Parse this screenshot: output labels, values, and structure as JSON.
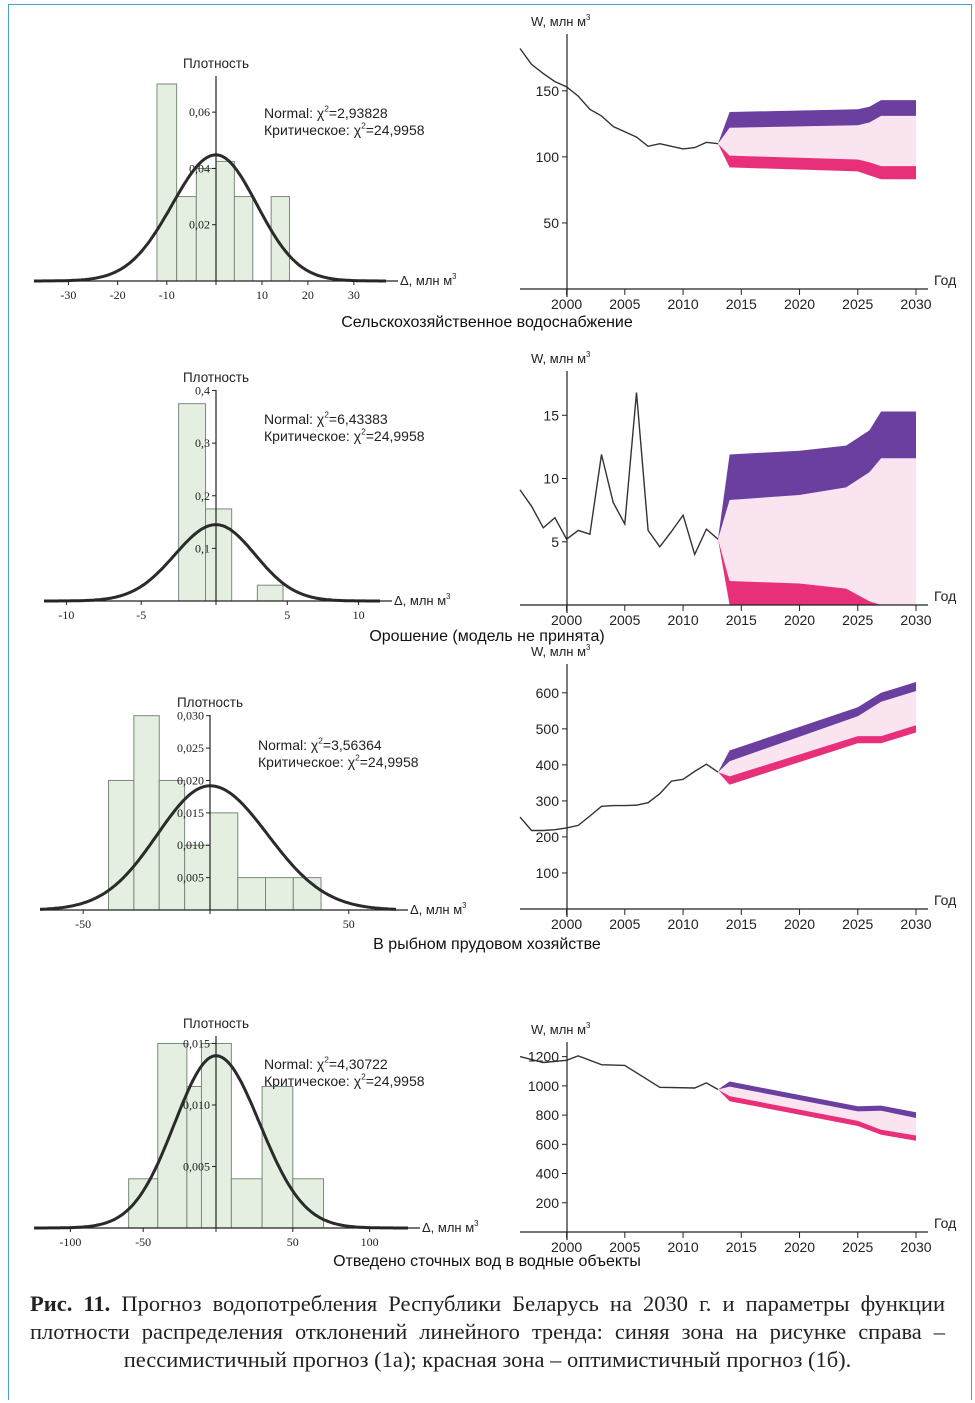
{
  "sections": [
    {
      "title": "Сельскохозяйственное водоснабжение",
      "hist": {
        "ylabel": "Плотность",
        "xlabel": "Δ, млн м",
        "unit_sup": "3",
        "xlim": [
          -37,
          37
        ],
        "ylim": [
          0,
          0.07
        ],
        "xticks": [
          -30,
          -20,
          -10,
          0,
          10,
          20,
          30
        ],
        "xtick_labels": [
          "-30",
          "-20",
          "-10",
          "",
          "10",
          "20",
          "30"
        ],
        "yticks": [
          0.02,
          0.04,
          0.06
        ],
        "ytick_labels": [
          "0,02",
          "0,04",
          "0,06"
        ],
        "bar_width": 4,
        "bar_starts": [
          -12,
          -8,
          -4,
          0,
          4,
          8,
          12
        ],
        "bar_heights": [
          0.07,
          0.03,
          0.04,
          0.0425,
          0.03,
          0.0,
          0.03
        ],
        "normal": {
          "mean": 0,
          "sd": 8.9
        },
        "stat_label": "Normal: χ",
        "stat_value": "=2,93828",
        "crit_label": "Критическое: χ",
        "crit_value": "=24,9958"
      },
      "forecast": {
        "ylabel": "W, млн м",
        "unit_sup": "3",
        "xlabel": "Год",
        "xlim": [
          1996,
          2030
        ],
        "ylim": [
          0,
          193
        ],
        "yticks": [
          50,
          100,
          150
        ],
        "ytick_labels": [
          "50",
          "100",
          "150"
        ],
        "xticks": [
          2000,
          2005,
          2010,
          2015,
          2020,
          2025,
          2030
        ],
        "history": {
          "x": [
            1996,
            1997,
            1998,
            1999,
            2000,
            2001,
            2002,
            2003,
            2004,
            2005,
            2006,
            2007,
            2008,
            2009,
            2010,
            2011,
            2012,
            2013
          ],
          "y": [
            182,
            170,
            163,
            157,
            153,
            146,
            136,
            131,
            123,
            119,
            115,
            108,
            110,
            108,
            106,
            107,
            111,
            110
          ]
        },
        "zones": {
          "x": [
            2013,
            2014,
            2025,
            2026,
            2027,
            2030
          ],
          "pess_upper": [
            110,
            134,
            136,
            138,
            143,
            143
          ],
          "pess_lower": [
            110,
            122,
            124,
            126,
            131,
            131
          ],
          "opt_upper": [
            110,
            101,
            98,
            96,
            93,
            93
          ],
          "opt_lower": [
            110,
            92,
            89,
            86,
            83,
            83
          ]
        }
      }
    },
    {
      "title": "Орошение (модель не принята)",
      "hist": {
        "ylabel": "Плотность",
        "xlabel": "Δ, млн м",
        "unit_sup": "3",
        "xlim": [
          -11.5,
          11.5
        ],
        "ylim": [
          0,
          0.42
        ],
        "xticks": [
          -10,
          -5,
          0,
          5,
          10
        ],
        "xtick_labels": [
          "-10",
          "-5",
          "",
          "5",
          "10"
        ],
        "yticks": [
          0.1,
          0.2,
          0.3,
          0.4
        ],
        "ytick_labels": [
          "0,1",
          "0,2",
          "0,3",
          "0,4"
        ],
        "bar_width": 1.8,
        "bar_starts": [
          -2.5,
          -0.7,
          1.1,
          2.9
        ],
        "bar_heights": [
          0.375,
          0.175,
          0.0,
          0.03
        ],
        "normal": {
          "mean": 0,
          "sd": 2.75
        },
        "stat_label": "Normal: χ",
        "stat_value": "=6,43383",
        "crit_label": "Критическое: χ",
        "crit_value": "=24,9958"
      },
      "forecast": {
        "ylabel": "W, млн м",
        "unit_sup": "3",
        "xlabel": "Год",
        "xlim": [
          1996,
          2030
        ],
        "ylim": [
          0,
          18.5
        ],
        "yticks": [
          5,
          10,
          15
        ],
        "ytick_labels": [
          "5",
          "10",
          "15"
        ],
        "xticks": [
          2000,
          2005,
          2010,
          2015,
          2020,
          2025,
          2030
        ],
        "history": {
          "x": [
            1996,
            1997,
            1998,
            1999,
            2000,
            2001,
            2002,
            2003,
            2004,
            2005,
            2006,
            2007,
            2008,
            2009,
            2010,
            2011,
            2012,
            2013
          ],
          "y": [
            9.1,
            7.8,
            6.1,
            6.9,
            5.2,
            5.9,
            5.6,
            11.9,
            8.1,
            6.4,
            16.8,
            5.9,
            4.6,
            5.8,
            7.1,
            4.0,
            6.0,
            5.2
          ]
        },
        "zones": {
          "x": [
            2013,
            2014,
            2020,
            2024,
            2026,
            2027,
            2030
          ],
          "pess_upper": [
            5.2,
            11.9,
            12.2,
            12.6,
            13.8,
            15.3,
            15.3
          ],
          "pess_lower": [
            5.2,
            8.3,
            8.7,
            9.3,
            10.5,
            11.6,
            11.6
          ],
          "opt_upper": [
            5.2,
            1.9,
            1.7,
            1.3,
            0.3,
            0,
            0
          ],
          "opt_lower": [
            5.2,
            0,
            0,
            0,
            0,
            0,
            0
          ]
        }
      }
    },
    {
      "title": "В рыбном прудовом хозяйстве",
      "hist": {
        "ylabel": "Плотность",
        "xlabel": "Δ, млн м",
        "unit_sup": "3",
        "xlim": [
          -67,
          67
        ],
        "ylim": [
          0,
          0.0315
        ],
        "xticks": [
          -50,
          0,
          50
        ],
        "xtick_labels": [
          "-50",
          "",
          "50"
        ],
        "yticks": [
          0.005,
          0.01,
          0.015,
          0.02,
          0.025,
          0.03
        ],
        "ytick_labels": [
          "0,005",
          "0,010",
          "0,015",
          "0,020",
          "0,025",
          "0,030"
        ],
        "bar_width": 10,
        "bar_starts": [
          -40,
          -30,
          -20,
          -10,
          0,
          10,
          20,
          30
        ],
        "bar_heights": [
          0.02,
          0.03,
          0.02,
          0.01,
          0.015,
          0.005,
          0.005,
          0.005
        ],
        "normal": {
          "mean": 0,
          "sd": 20.8
        },
        "stat_label": "Normal: χ",
        "stat_value": "=3,56364",
        "crit_label": "Критическое: χ",
        "crit_value": "=24,9958"
      },
      "forecast": {
        "ylabel": "W, млн м",
        "unit_sup": "3",
        "xlabel": "Год",
        "xlim": [
          1996,
          2030
        ],
        "ylim": [
          0,
          680
        ],
        "yticks": [
          100,
          200,
          300,
          400,
          500,
          600
        ],
        "ytick_labels": [
          "100",
          "200",
          "300",
          "400",
          "500",
          "600"
        ],
        "xticks": [
          2000,
          2005,
          2010,
          2015,
          2020,
          2025,
          2030
        ],
        "history": {
          "x": [
            1996,
            1997,
            1998,
            1999,
            2000,
            2001,
            2002,
            2003,
            2004,
            2005,
            2006,
            2007,
            2008,
            2009,
            2010,
            2011,
            2012,
            2013
          ],
          "y": [
            255,
            218,
            218,
            220,
            225,
            232,
            258,
            285,
            287,
            287,
            288,
            295,
            320,
            355,
            360,
            382,
            402,
            380
          ]
        },
        "zones": {
          "x": [
            2013,
            2014,
            2025,
            2027,
            2030
          ],
          "pess_upper": [
            380,
            440,
            560,
            600,
            630
          ],
          "pess_lower": [
            380,
            410,
            535,
            575,
            605
          ],
          "opt_upper": [
            380,
            368,
            480,
            480,
            510
          ],
          "opt_lower": [
            380,
            345,
            460,
            460,
            490
          ]
        }
      }
    },
    {
      "title": "Отведено сточных вод в водные объекты",
      "hist": {
        "ylabel": "Плотность",
        "xlabel": "Δ, млн м",
        "unit_sup": "3",
        "xlim": [
          -125,
          125
        ],
        "ylim": [
          0,
          0.0165
        ],
        "xticks": [
          -100,
          -50,
          0,
          50,
          100
        ],
        "xtick_labels": [
          "-100",
          "-50",
          "",
          "50",
          "100"
        ],
        "yticks": [
          0.005,
          0.01,
          0.015
        ],
        "ytick_labels": [
          "0,005",
          "0,010",
          "0,015"
        ],
        "bar_width": 20,
        "bar_starts": [
          -60,
          -40,
          -20,
          -10,
          10,
          30,
          50
        ],
        "bar_heights": [
          0.004,
          0.015,
          0.0115,
          0.015,
          0.004,
          0.0115,
          0.004
        ],
        "normal": {
          "mean": 0,
          "sd": 28.5
        },
        "stat_label": "Normal: χ",
        "stat_value": "=4,30722",
        "crit_label": "Критическое: χ",
        "crit_value": "=24,9958"
      },
      "forecast": {
        "ylabel": "W, млн м",
        "unit_sup": "3",
        "xlabel": "Год",
        "xlim": [
          1996,
          2030
        ],
        "ylim": [
          0,
          1300
        ],
        "yticks": [
          200,
          400,
          600,
          800,
          1000,
          1200
        ],
        "ytick_labels": [
          "200",
          "400",
          "600",
          "800",
          "1000",
          "1200"
        ],
        "xticks": [
          2000,
          2005,
          2010,
          2015,
          2020,
          2025,
          2030
        ],
        "history": {
          "x": [
            1996,
            1998,
            2000,
            2001,
            2003,
            2005,
            2008,
            2011,
            2012,
            2013
          ],
          "y": [
            1200,
            1160,
            1175,
            1205,
            1145,
            1140,
            990,
            985,
            1020,
            975
          ]
        },
        "zones": {
          "x": [
            2013,
            2014,
            2025,
            2027,
            2030
          ],
          "pess_upper": [
            975,
            1030,
            860,
            865,
            820
          ],
          "pess_lower": [
            975,
            995,
            825,
            830,
            780
          ],
          "opt_upper": [
            975,
            930,
            760,
            700,
            660
          ],
          "opt_lower": [
            975,
            895,
            725,
            665,
            625
          ]
        }
      }
    }
  ],
  "colors": {
    "bar_fill": "#e4efe2",
    "bar_stroke": "#7a8a7a",
    "curve": "#2b2b2b",
    "pessimistic": "#6b3fa0",
    "middle": "#fae4f0",
    "optimistic": "#e8307a",
    "frame": "#4a9fd0"
  },
  "caption": {
    "label": "Рис. 11.",
    "text": " Прогноз водопотребления Республики Беларусь на 2030 г. и параметры функции плотности распределения отклонений линейного тренда: синяя зона на рисунке справа – пессимистичный прогноз (1а); красная зона – оптимистичный прогноз (1б)."
  }
}
